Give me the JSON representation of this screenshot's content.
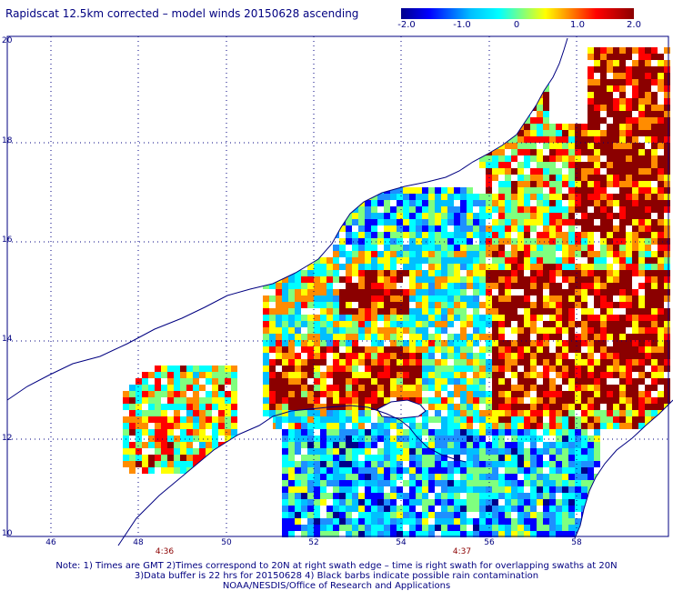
{
  "title": "Rapidscat 12.5km corrected – model winds 20150628 ascending",
  "colorbar": {
    "labels": [
      "-2.0",
      "-1.0",
      "0",
      "1.0",
      "2.0"
    ],
    "range": [
      -2.0,
      2.0
    ],
    "colors": [
      "#00008b",
      "#0000ff",
      "#00bfff",
      "#00ffff",
      "#7fff7f",
      "#ffff00",
      "#ff8c00",
      "#ff0000",
      "#8b0000"
    ]
  },
  "axes": {
    "lat_labels": [
      "20",
      "18",
      "16",
      "14",
      "12",
      "10"
    ],
    "lon_labels": [
      "46",
      "48",
      "50",
      "52",
      "54",
      "56",
      "58"
    ],
    "lat_range": [
      10,
      20
    ],
    "lon_range": [
      45,
      60
    ]
  },
  "swath_times": [
    {
      "label": "4:36",
      "lon": 48.6
    },
    {
      "label": "4:37",
      "lon": 54.8
    }
  ],
  "notes": {
    "line1": "Note: 1) Times are GMT 2)Times correspond to 20N at right swath edge – time is right swath for overlapping swaths at 20N",
    "line2": "3)Data buffer is 22 hrs for 20150628 4) Black barbs indicate possible rain contamination",
    "line3": "NOAA/NESDIS/Office of Research and Applications"
  },
  "colors": {
    "text": "#000080",
    "coast": "#000080",
    "grid": "#000080",
    "time_text": "#8b0000"
  }
}
